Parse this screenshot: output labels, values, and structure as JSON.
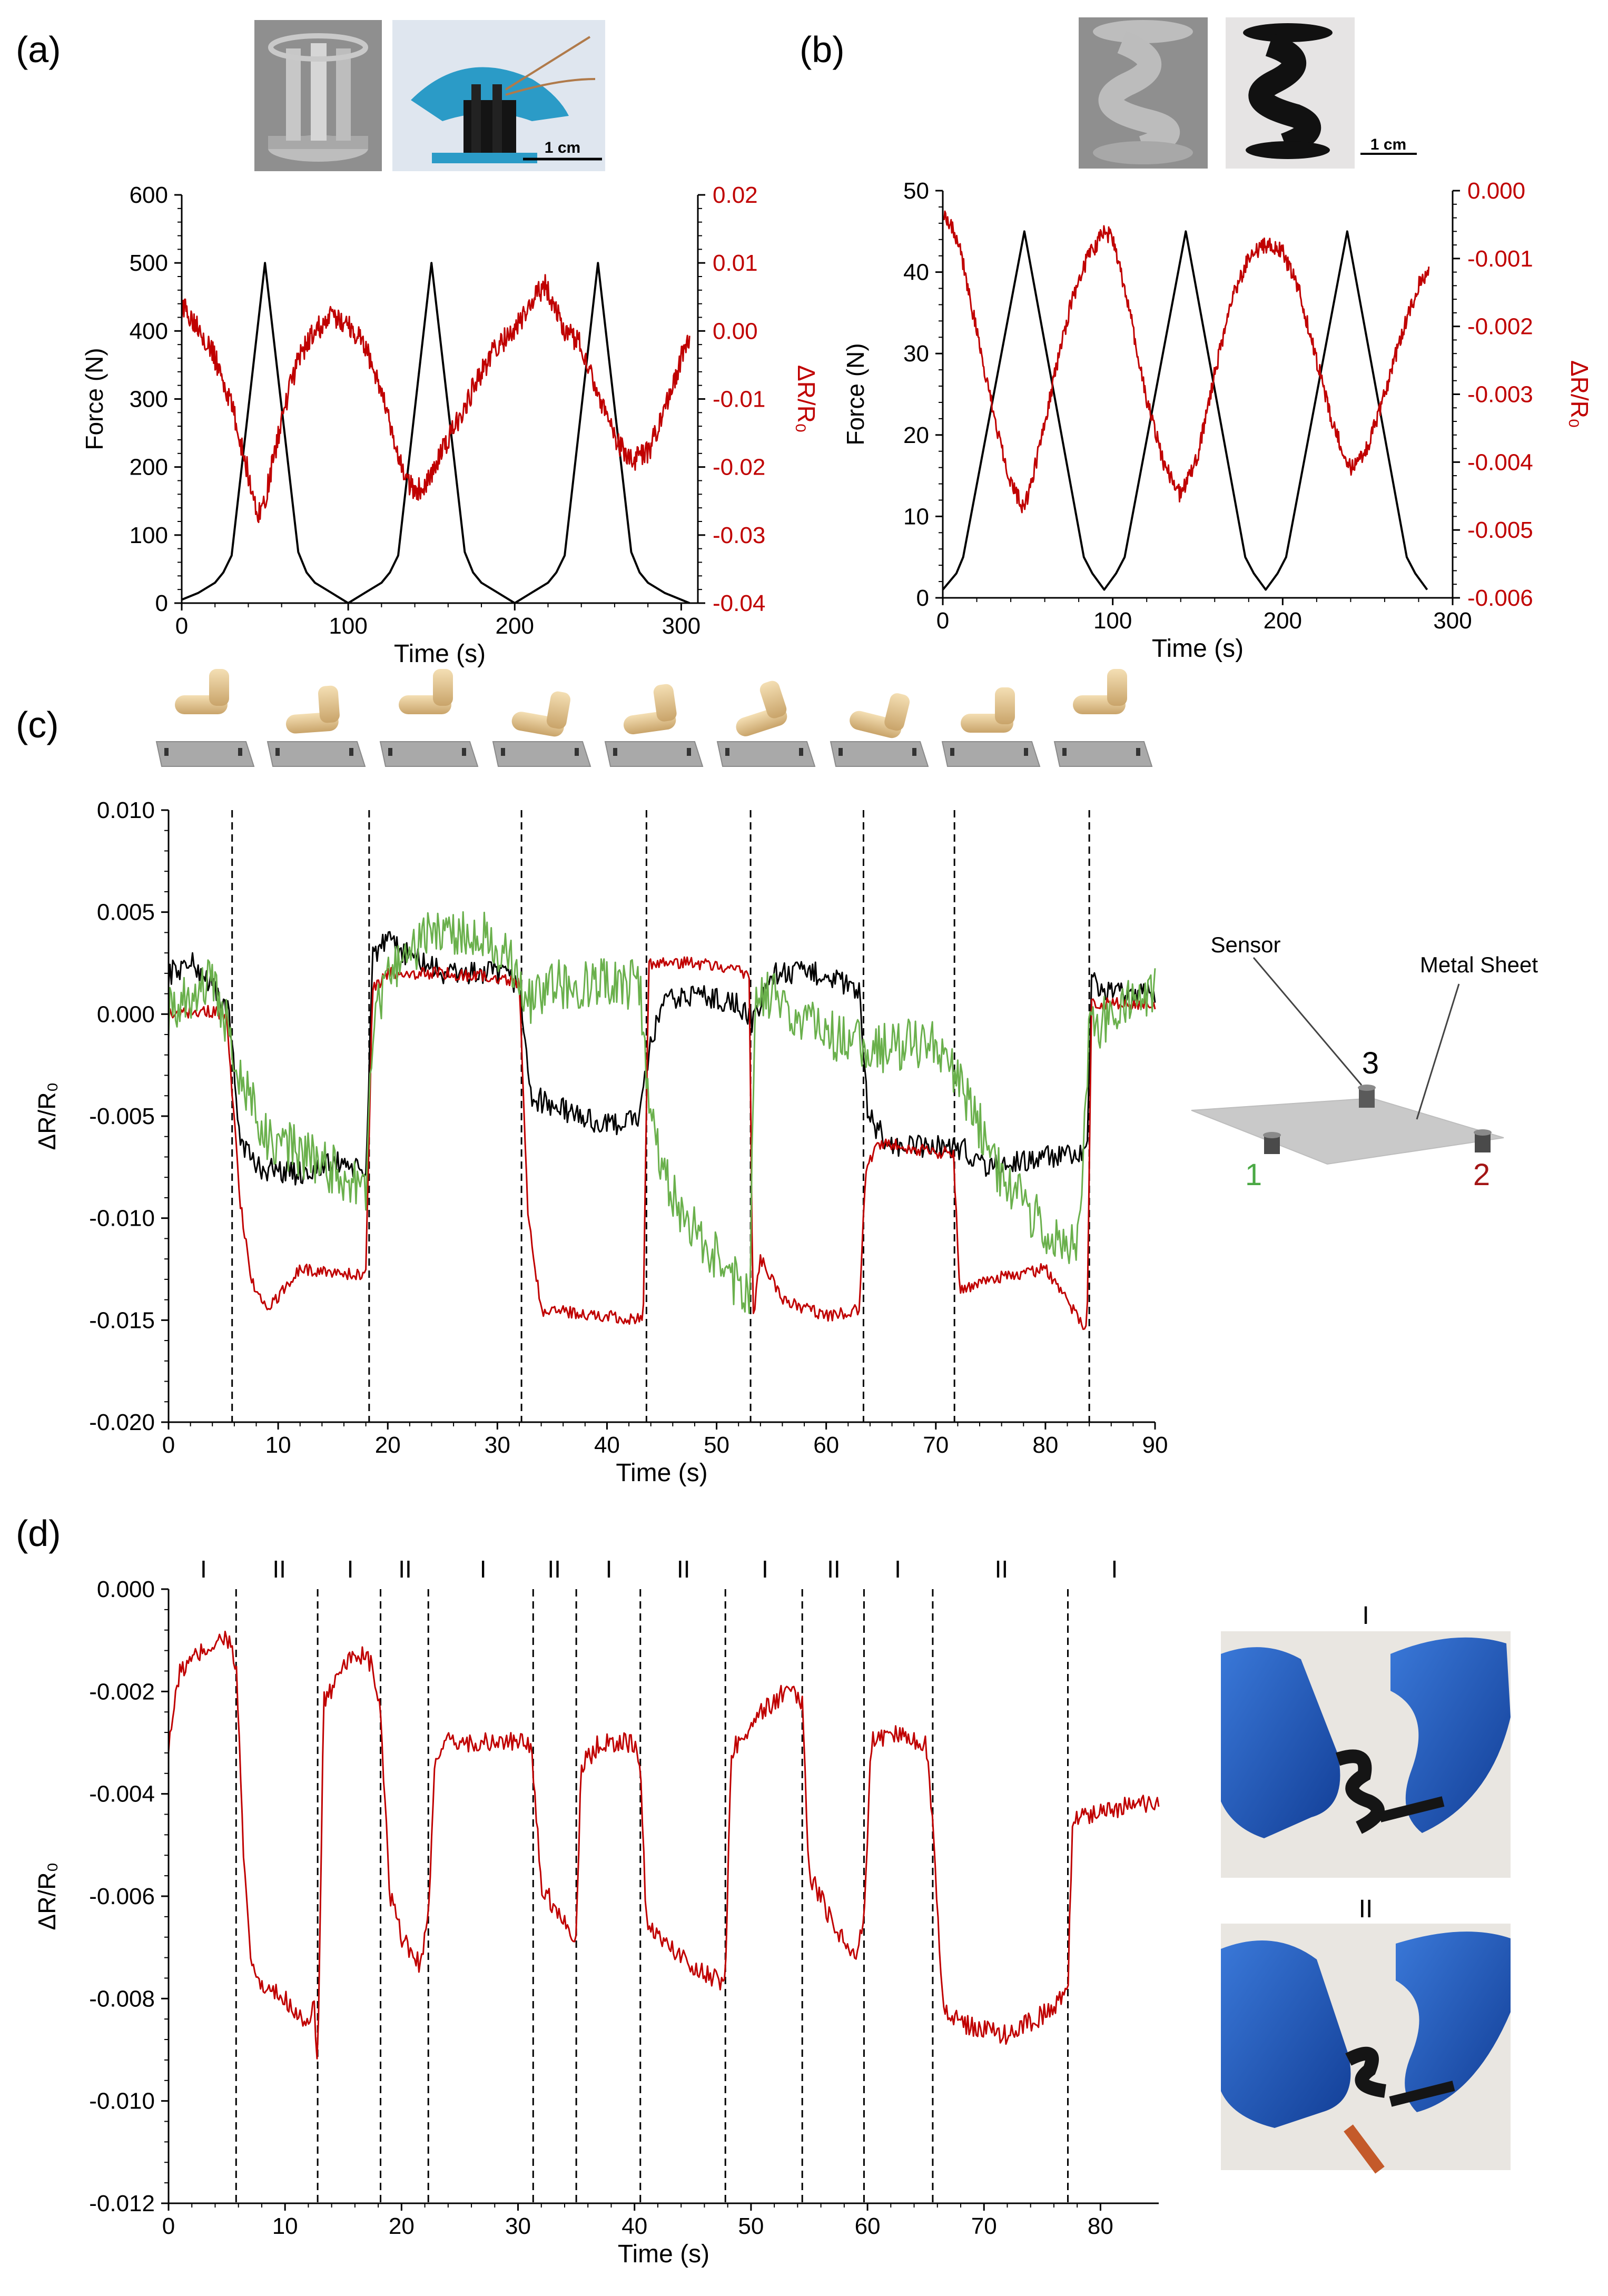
{
  "panels": [
    {
      "id": "a",
      "label": "(a)"
    },
    {
      "id": "b",
      "label": "(b)"
    },
    {
      "id": "c",
      "label": "(c)"
    },
    {
      "id": "d",
      "label": "(d)"
    }
  ],
  "photos": {
    "a_scale": "1 cm",
    "b_scale": "1 cm",
    "d_photo_labels": [
      "I",
      "II"
    ]
  },
  "schematic_c": {
    "sensor_label": "Sensor",
    "sheet_label": "Metal Sheet",
    "sensor_numbers": [
      "1",
      "2",
      "3"
    ]
  },
  "colors": {
    "black": "#000000",
    "red": "#c00000",
    "green": "#6ab04c",
    "axis_red": "#c00000"
  },
  "chart_data": [
    {
      "id": "a",
      "type": "line",
      "xlabel": "Time (s)",
      "ylabel": "Force (N)",
      "y2label": "ΔR/R₀",
      "xlim": [
        0,
        310
      ],
      "ylim": [
        0,
        600
      ],
      "y2lim": [
        -0.04,
        0.02
      ],
      "xticks": [
        0,
        100,
        200,
        300
      ],
      "yticks": [
        0,
        100,
        200,
        300,
        400,
        500,
        600
      ],
      "y2ticks": [
        -0.04,
        -0.03,
        -0.02,
        -0.01,
        0.0,
        0.01,
        0.02
      ],
      "y2ticklabels": [
        "-0.04",
        "-0.03",
        "-0.02",
        "-0.01",
        "0.00",
        "0.01",
        "0.02"
      ],
      "series": [
        {
          "axis": "left",
          "color": "#000000",
          "x": [
            0,
            10,
            20,
            25,
            30,
            50,
            70,
            75,
            80,
            90,
            100,
            110,
            120,
            125,
            130,
            150,
            170,
            175,
            180,
            190,
            200,
            210,
            220,
            225,
            230,
            250,
            270,
            275,
            280,
            290,
            300,
            305
          ],
          "y": [
            5,
            15,
            30,
            45,
            70,
            500,
            75,
            45,
            30,
            15,
            0,
            15,
            30,
            45,
            70,
            500,
            75,
            45,
            30,
            15,
            0,
            15,
            30,
            45,
            70,
            500,
            75,
            45,
            30,
            15,
            5,
            0
          ]
        },
        {
          "axis": "right",
          "color": "#c00000",
          "x": [
            0,
            10,
            20,
            30,
            40,
            45,
            50,
            60,
            70,
            80,
            90,
            100,
            110,
            120,
            130,
            140,
            150,
            160,
            170,
            180,
            190,
            200,
            210,
            218,
            225,
            230,
            240,
            250,
            260,
            270,
            280,
            290,
            300,
            305
          ],
          "y": [
            0.0035,
            0.001,
            -0.004,
            -0.011,
            -0.021,
            -0.027,
            -0.025,
            -0.013,
            -0.004,
            0.0,
            0.002,
            0.001,
            -0.002,
            -0.009,
            -0.019,
            -0.024,
            -0.021,
            -0.016,
            -0.011,
            -0.006,
            -0.002,
            0.0,
            0.004,
            0.007,
            0.003,
            0.0,
            -0.002,
            -0.009,
            -0.016,
            -0.019,
            -0.018,
            -0.012,
            -0.004,
            -0.001
          ],
          "noise": 0.0035
        }
      ]
    },
    {
      "id": "b",
      "type": "line",
      "xlabel": "Time (s)",
      "ylabel": "Force (N)",
      "y2label": "ΔR/R₀",
      "xlim": [
        0,
        300
      ],
      "ylim": [
        0,
        50
      ],
      "y2lim": [
        -0.006,
        0.0
      ],
      "xticks": [
        0,
        100,
        200,
        300
      ],
      "yticks": [
        0,
        10,
        20,
        30,
        40,
        50
      ],
      "y2ticks": [
        -0.006,
        -0.005,
        -0.004,
        -0.003,
        -0.002,
        -0.001,
        0.0
      ],
      "y2ticklabels": [
        "-0.006",
        "-0.005",
        "-0.004",
        "-0.003",
        "-0.002",
        "-0.001",
        "0.000"
      ],
      "series": [
        {
          "axis": "left",
          "color": "#000000",
          "x": [
            0,
            8,
            12,
            48,
            83,
            88,
            95,
            102,
            107,
            143,
            178,
            183,
            190,
            197,
            202,
            238,
            273,
            278,
            285
          ],
          "y": [
            1,
            3,
            5,
            45,
            5,
            3,
            1,
            3,
            5,
            45,
            5,
            3,
            1,
            3,
            5,
            45,
            5,
            3,
            1
          ]
        },
        {
          "axis": "right",
          "color": "#c00000",
          "x": [
            0,
            5,
            10,
            20,
            30,
            40,
            48,
            55,
            65,
            75,
            85,
            95,
            100,
            110,
            120,
            130,
            140,
            150,
            160,
            170,
            180,
            190,
            200,
            210,
            220,
            230,
            240,
            250,
            260,
            270,
            280,
            286
          ],
          "y": [
            -0.0003,
            -0.0005,
            -0.0008,
            -0.0021,
            -0.0033,
            -0.0043,
            -0.0047,
            -0.004,
            -0.0028,
            -0.0017,
            -0.001,
            -0.0006,
            -0.0007,
            -0.0018,
            -0.0031,
            -0.004,
            -0.0045,
            -0.0039,
            -0.0027,
            -0.0016,
            -0.001,
            -0.0008,
            -0.0009,
            -0.0015,
            -0.0025,
            -0.0035,
            -0.0041,
            -0.0038,
            -0.003,
            -0.0021,
            -0.0014,
            -0.0012
          ],
          "noise": 0.00025
        }
      ]
    },
    {
      "id": "c",
      "type": "line",
      "xlabel": "Time (s)",
      "ylabel": "ΔR/R₀",
      "xlim": [
        0,
        90
      ],
      "ylim": [
        -0.02,
        0.01
      ],
      "xticks": [
        0,
        10,
        20,
        30,
        40,
        50,
        60,
        70,
        80,
        90
      ],
      "yticks": [
        -0.02,
        -0.015,
        -0.01,
        -0.005,
        0.0,
        0.005,
        0.01
      ],
      "yticklabels": [
        "-0.020",
        "-0.015",
        "-0.010",
        "-0.005",
        "0.000",
        "0.005",
        "0.010"
      ],
      "vlines": [
        5.8,
        18.3,
        32.2,
        43.6,
        53.1,
        63.4,
        71.7,
        84.0
      ],
      "series": [
        {
          "name": "",
          "color": "#000000",
          "x": [
            0,
            2,
            4,
            5.5,
            6.5,
            8,
            12,
            16,
            18,
            18.6,
            20,
            25,
            30,
            32,
            33,
            35,
            40,
            43,
            44,
            45,
            48,
            52,
            53.3,
            55,
            60,
            63,
            63.8,
            66,
            70,
            72,
            75,
            80,
            83.8,
            84.2,
            86,
            90
          ],
          "y": [
            0.002,
            0.0025,
            0.0015,
            0.0,
            -0.006,
            -0.0075,
            -0.0078,
            -0.0072,
            -0.008,
            0.003,
            0.0035,
            0.002,
            0.002,
            0.0015,
            -0.004,
            -0.0045,
            -0.0055,
            -0.005,
            -0.0015,
            0.0005,
            0.001,
            0.0005,
            -0.0005,
            0.002,
            0.002,
            0.001,
            -0.005,
            -0.0065,
            -0.0065,
            -0.0065,
            -0.0075,
            -0.007,
            -0.007,
            0.0015,
            0.001,
            0.001
          ],
          "noise": 0.0012
        },
        {
          "name": "",
          "color": "#c00000",
          "x": [
            0,
            3,
            5.3,
            6.5,
            7.5,
            9,
            12,
            16,
            18,
            18.6,
            20,
            25,
            30,
            32,
            32.8,
            34,
            38,
            43.3,
            43.8,
            48,
            53,
            53.3,
            54,
            56,
            60,
            63,
            63.6,
            65,
            70,
            71.6,
            72.2,
            75,
            80,
            83.8,
            84.2,
            86,
            90
          ],
          "y": [
            0.0,
            0.0002,
            0.0,
            -0.009,
            -0.013,
            -0.0145,
            -0.0125,
            -0.0127,
            -0.0128,
            0.0012,
            0.002,
            0.002,
            0.0018,
            0.0015,
            -0.01,
            -0.0145,
            -0.0147,
            -0.015,
            0.0025,
            0.0025,
            0.002,
            -0.015,
            -0.012,
            -0.014,
            -0.0148,
            -0.0145,
            -0.0075,
            -0.0063,
            -0.0068,
            -0.0068,
            -0.0135,
            -0.013,
            -0.0125,
            -0.0155,
            0.0005,
            0.0005,
            0.0005
          ],
          "noise": 0.0006
        },
        {
          "name": "",
          "color": "#6ab04c",
          "x": [
            0,
            2,
            4,
            5.5,
            6.5,
            9,
            13,
            16,
            18,
            18.6,
            20,
            24,
            28,
            31,
            32.5,
            35,
            40,
            43,
            43.8,
            46,
            50,
            53,
            53.5,
            55,
            60,
            63,
            64,
            66,
            70,
            72,
            76,
            80,
            83,
            84,
            86,
            90
          ],
          "y": [
            0.0,
            0.001,
            0.002,
            -0.001,
            -0.003,
            -0.006,
            -0.007,
            -0.008,
            -0.009,
            -0.0005,
            0.002,
            0.004,
            0.004,
            0.003,
            0.0005,
            0.0015,
            0.0015,
            0.0015,
            -0.005,
            -0.009,
            -0.012,
            -0.014,
            0.0005,
            0.001,
            -0.001,
            -0.0015,
            -0.002,
            -0.0015,
            -0.0015,
            -0.003,
            -0.008,
            -0.0105,
            -0.0115,
            -0.001,
            0.0,
            0.001
          ],
          "noise": 0.0025
        }
      ]
    },
    {
      "id": "d",
      "type": "line",
      "xlabel": "Time (s)",
      "ylabel": "ΔR/R₀",
      "xlim": [
        0,
        85
      ],
      "ylim": [
        -0.012,
        0.0
      ],
      "xticks": [
        0,
        10,
        20,
        30,
        40,
        50,
        60,
        70,
        80
      ],
      "yticks": [
        -0.012,
        -0.01,
        -0.008,
        -0.006,
        -0.004,
        -0.002,
        0.0
      ],
      "yticklabels": [
        "-0.012",
        "-0.010",
        "-0.008",
        "-0.006",
        "-0.004",
        "-0.002",
        "0.000"
      ],
      "vlines": [
        5.8,
        12.8,
        18.2,
        22.3,
        31.3,
        35.0,
        40.5,
        47.8,
        54.4,
        59.7,
        65.6,
        77.2
      ],
      "regions": [
        {
          "label": "I",
          "x": 3.0
        },
        {
          "label": "II",
          "x": 9.5
        },
        {
          "label": "I",
          "x": 15.6
        },
        {
          "label": "II",
          "x": 20.3
        },
        {
          "label": "I",
          "x": 27.0
        },
        {
          "label": "II",
          "x": 33.1
        },
        {
          "label": "I",
          "x": 37.8
        },
        {
          "label": "II",
          "x": 44.2
        },
        {
          "label": "I",
          "x": 51.2
        },
        {
          "label": "II",
          "x": 57.1
        },
        {
          "label": "I",
          "x": 62.6
        },
        {
          "label": "II",
          "x": 71.5
        },
        {
          "label": "I",
          "x": 81.2
        }
      ],
      "series": [
        {
          "name": "",
          "color": "#c00000",
          "x": [
            0,
            1,
            3,
            5,
            5.8,
            6.5,
            7,
            8,
            10,
            12,
            12.5,
            12.8,
            13.3,
            14.5,
            16,
            17.5,
            18.2,
            19,
            20,
            21.5,
            22.3,
            22.8,
            24,
            28,
            31,
            31.3,
            32,
            34,
            35,
            35.4,
            37,
            40,
            40.5,
            41,
            43,
            46,
            47.8,
            48.3,
            50,
            52,
            53,
            54.4,
            55,
            57,
            59,
            59.7,
            60.3,
            62,
            65,
            65.6,
            66.5,
            68,
            72,
            76,
            77.2,
            77.6,
            80,
            85
          ],
          "y": [
            -0.003,
            -0.0016,
            -0.0012,
            -0.0009,
            -0.0015,
            -0.0055,
            -0.0072,
            -0.0078,
            -0.008,
            -0.0085,
            -0.0082,
            -0.0095,
            -0.0022,
            -0.0018,
            -0.0012,
            -0.0015,
            -0.0025,
            -0.006,
            -0.0068,
            -0.0073,
            -0.0065,
            -0.0035,
            -0.003,
            -0.003,
            -0.003,
            -0.0035,
            -0.0058,
            -0.0065,
            -0.0068,
            -0.0035,
            -0.003,
            -0.003,
            -0.0035,
            -0.0065,
            -0.007,
            -0.0075,
            -0.0077,
            -0.0032,
            -0.0026,
            -0.0022,
            -0.002,
            -0.0022,
            -0.0056,
            -0.0065,
            -0.0072,
            -0.0065,
            -0.003,
            -0.0028,
            -0.003,
            -0.0045,
            -0.0082,
            -0.0085,
            -0.0087,
            -0.0082,
            -0.0078,
            -0.0045,
            -0.0043,
            -0.0042
          ],
          "noise": 0.0004
        }
      ]
    }
  ]
}
